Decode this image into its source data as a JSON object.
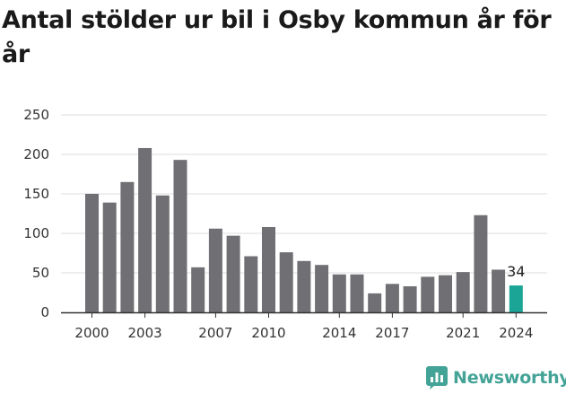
{
  "title": "Antal stölder ur bil i Osby kommun år för år",
  "brand": {
    "name": "Newsworthy",
    "logo_icon": "newsworthy-chart-bubble-icon",
    "color": "#43a397"
  },
  "chart_data": {
    "type": "bar",
    "title": "Antal stölder ur bil i Osby kommun år för år",
    "xlabel": "",
    "ylabel": "",
    "x": [
      2000,
      2001,
      2002,
      2003,
      2004,
      2005,
      2006,
      2007,
      2008,
      2009,
      2010,
      2011,
      2012,
      2013,
      2014,
      2015,
      2016,
      2017,
      2018,
      2019,
      2020,
      2021,
      2022,
      2023,
      2024
    ],
    "values": [
      150,
      139,
      165,
      208,
      148,
      193,
      57,
      106,
      97,
      71,
      108,
      76,
      65,
      60,
      48,
      48,
      24,
      36,
      33,
      45,
      47,
      51,
      123,
      54,
      34
    ],
    "ylim": [
      0,
      250
    ],
    "yticks": [
      0,
      50,
      100,
      150,
      200,
      250
    ],
    "xticks": [
      2000,
      2003,
      2007,
      2010,
      2014,
      2017,
      2021,
      2024
    ],
    "grid": true,
    "legend": "none",
    "highlight": {
      "x": 2024,
      "label": "34"
    },
    "colors": {
      "bar": "#706f73",
      "highlight": "#1ba596",
      "grid": "#dddddd",
      "axis": "#333333"
    }
  }
}
